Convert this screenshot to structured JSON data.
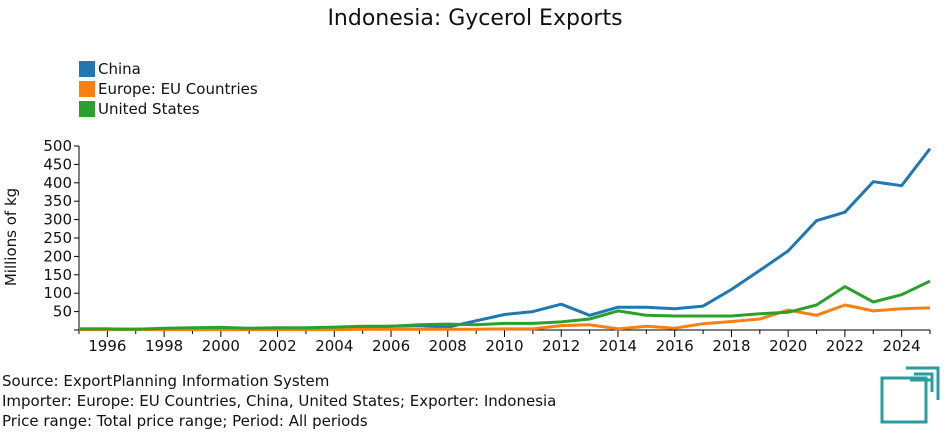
{
  "chart_data": {
    "type": "line",
    "title": "Indonesia: Gycerol Exports",
    "ylabel": "Millions of kg",
    "xlabel": "",
    "xlim": [
      1995,
      2025
    ],
    "ylim": [
      0,
      500
    ],
    "y_ticks": [
      50,
      100,
      150,
      200,
      250,
      300,
      350,
      400,
      450,
      500
    ],
    "x_ticks": [
      1996,
      1998,
      2000,
      2002,
      2004,
      2006,
      2008,
      2010,
      2012,
      2014,
      2016,
      2018,
      2020,
      2022,
      2024
    ],
    "legend_position": "top-left",
    "grid": false,
    "x": [
      1995,
      1996,
      1997,
      1998,
      1999,
      2000,
      2001,
      2002,
      2003,
      2004,
      2005,
      2006,
      2007,
      2008,
      2009,
      2010,
      2011,
      2012,
      2013,
      2014,
      2015,
      2016,
      2017,
      2018,
      2019,
      2020,
      2021,
      2022,
      2023,
      2024,
      2025
    ],
    "series": [
      {
        "name": "China",
        "color": "#1f77b4",
        "values": [
          3,
          3,
          2,
          3,
          4,
          5,
          4,
          4,
          4,
          5,
          8,
          10,
          12,
          8,
          25,
          42,
          50,
          70,
          40,
          62,
          62,
          58,
          65,
          110,
          162,
          215,
          297,
          320,
          403,
          392,
          493
        ]
      },
      {
        "name": "Europe: EU Countries",
        "color": "#ff7f0e",
        "values": [
          1,
          1,
          1,
          1,
          1,
          1,
          1,
          1,
          1,
          1,
          2,
          2,
          2,
          2,
          2,
          3,
          3,
          12,
          14,
          3,
          10,
          5,
          17,
          23,
          30,
          54,
          40,
          68,
          52,
          58,
          60
        ]
      },
      {
        "name": "United States",
        "color": "#2ca02c",
        "values": [
          3,
          3,
          2,
          5,
          6,
          7,
          5,
          6,
          6,
          8,
          10,
          10,
          14,
          16,
          14,
          18,
          18,
          22,
          30,
          52,
          40,
          38,
          38,
          38,
          44,
          48,
          68,
          118,
          76,
          96,
          133
        ]
      }
    ]
  },
  "footer": {
    "source": "Source: ExportPlanning Information System",
    "importer": "Importer: Europe: EU Countries, China, United States; Exporter: Indonesia",
    "price": "Price range: Total price range; Period: All periods"
  },
  "logo": {
    "color": "#2a9d9e",
    "icon": "exportplanning-logo-icon"
  }
}
